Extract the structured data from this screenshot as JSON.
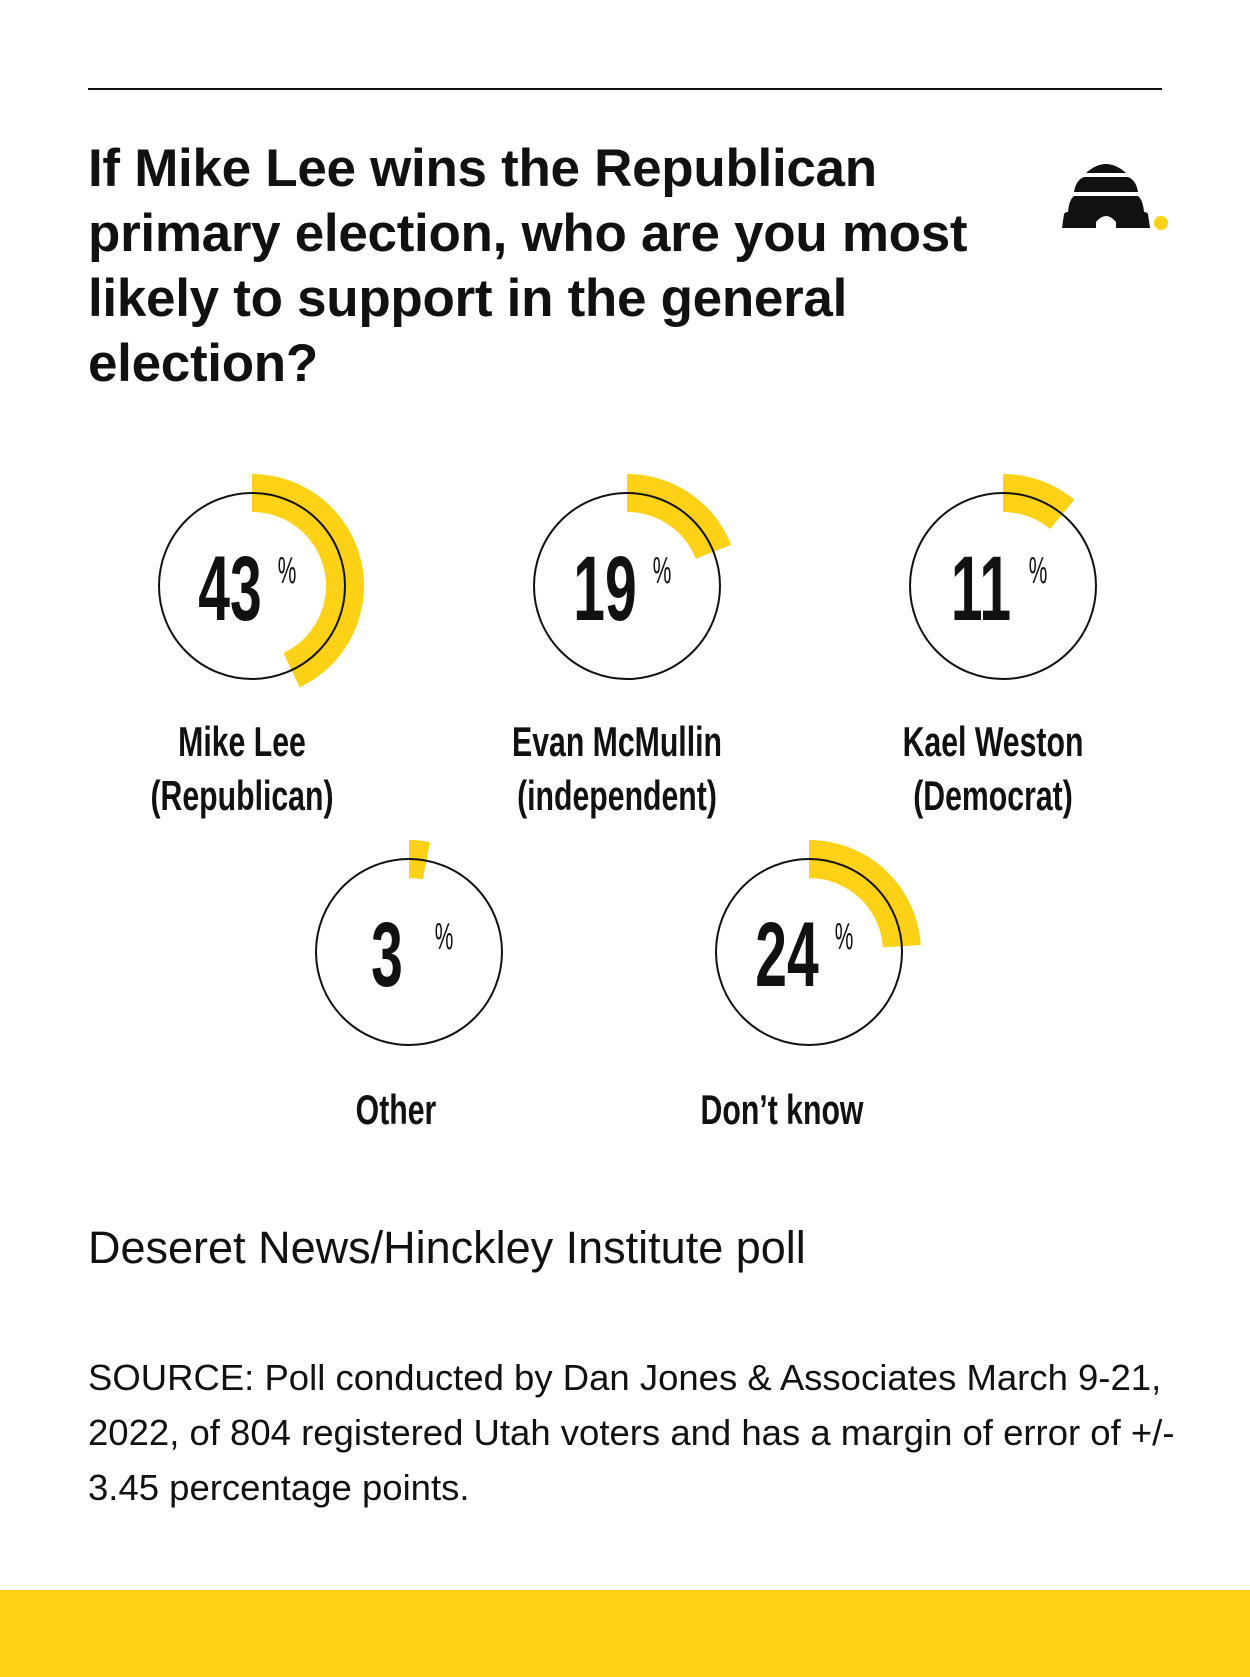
{
  "title": "If Mike Lee wins the Republican primary election, who are you most likely to support in the general election?",
  "subtitle": "Deseret News/Hinckley Institute poll",
  "source": "SOURCE: Poll conducted by Dan Jones & Associates March 9-21, 2022, of 804 registered Utah voters and has a margin of error of +/- 3.45 percentage points.",
  "logo": "beehive-icon",
  "colors": {
    "accent": "#FCD116",
    "text": "#111111"
  },
  "chart_data": {
    "type": "pie",
    "unit": "%",
    "categories": [
      {
        "label": [
          "Mike Lee",
          "(Republican)"
        ],
        "value": 43
      },
      {
        "label": [
          "Evan McMullin",
          "(independent)"
        ],
        "value": 19
      },
      {
        "label": [
          "Kael Weston",
          "(Democrat)"
        ],
        "value": 11
      },
      {
        "label": [
          "Other"
        ],
        "value": 3
      },
      {
        "label": [
          "Don’t know"
        ],
        "value": 24
      }
    ]
  }
}
